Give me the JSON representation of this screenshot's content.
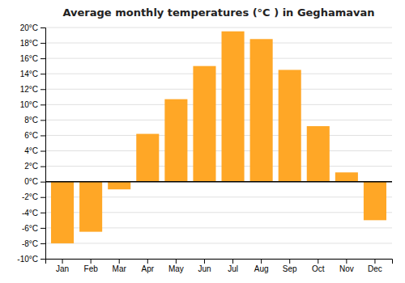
{
  "chart_data": {
    "type": "bar",
    "title": "Average monthly temperatures (°C ) in Geghamavan",
    "categories": [
      "Jan",
      "Feb",
      "Mar",
      "Apr",
      "May",
      "Jun",
      "Jul",
      "Aug",
      "Sep",
      "Oct",
      "Nov",
      "Dec"
    ],
    "values": [
      -8.0,
      -6.5,
      -1.0,
      6.2,
      10.7,
      15.0,
      19.5,
      18.5,
      14.5,
      7.2,
      1.2,
      -5.0
    ],
    "color": "#FFA726",
    "ylim": [
      -10,
      20
    ],
    "yticks": [
      {
        "value": -10,
        "label": "-10°C"
      },
      {
        "value": -8,
        "label": "-8°C"
      },
      {
        "value": -6,
        "label": "-6°C"
      },
      {
        "value": -4,
        "label": "-4°C"
      },
      {
        "value": -2,
        "label": "-2°C"
      },
      {
        "value": 0,
        "label": "0°C"
      },
      {
        "value": 2,
        "label": "2°C"
      },
      {
        "value": 4,
        "label": "4°C"
      },
      {
        "value": 6,
        "label": "6°C"
      },
      {
        "value": 8,
        "label": "8°C"
      },
      {
        "value": 10,
        "label": "10°C"
      },
      {
        "value": 12,
        "label": "12°C"
      },
      {
        "value": 14,
        "label": "14°C"
      },
      {
        "value": 16,
        "label": "16°C"
      },
      {
        "value": 18,
        "label": "18°C"
      },
      {
        "value": 20,
        "label": "20°C"
      }
    ],
    "grid": true
  }
}
